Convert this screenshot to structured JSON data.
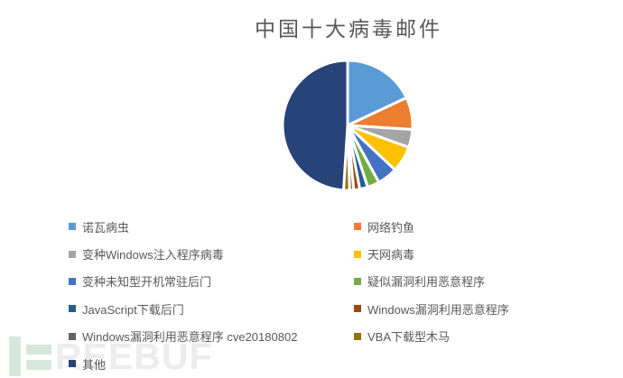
{
  "title": "中国十大病毒邮件",
  "text_color": "#595959",
  "background_color": "#ffffff",
  "chart_data": {
    "type": "pie",
    "title": "中国十大病毒邮件",
    "legend_position": "bottom",
    "legend_columns": 2,
    "data_labels_visible": false,
    "values_unit": "percent (estimated from slice angles, no labels shown)",
    "series": [
      {
        "label": "诺瓦病虫",
        "value": 18,
        "color": "#5B9BD5"
      },
      {
        "label": "网络钓鱼",
        "value": 8,
        "color": "#ED7D31"
      },
      {
        "label": "变种Windows注入程序病毒",
        "value": 4.5,
        "color": "#A5A5A5"
      },
      {
        "label": "天网病毒",
        "value": 6.5,
        "color": "#FFC000"
      },
      {
        "label": "变种未知型开机常驻后门",
        "value": 5,
        "color": "#4472C4"
      },
      {
        "label": "疑似漏洞利用恶意程序",
        "value": 3,
        "color": "#70AD47"
      },
      {
        "label": "JavaScript下载后门",
        "value": 2,
        "color": "#255E91"
      },
      {
        "label": "Windows漏洞利用恶意程序",
        "value": 1.5,
        "color": "#9E480E"
      },
      {
        "label": "Windows漏洞利用恶意程序 cve20180802",
        "value": 1,
        "color": "#636363"
      },
      {
        "label": "VBA下载型木马",
        "value": 1.5,
        "color": "#997300"
      },
      {
        "label": "其他",
        "value": 49,
        "color": "#264478"
      }
    ],
    "slice_border_color": "#ffffff",
    "slice_start_angle_deg": 0
  },
  "watermark": {
    "icon": "freebuf-logo-bars-icon",
    "text": "REEBUF",
    "icon_color": "#d8e7dd",
    "text_color": "#ececec"
  }
}
